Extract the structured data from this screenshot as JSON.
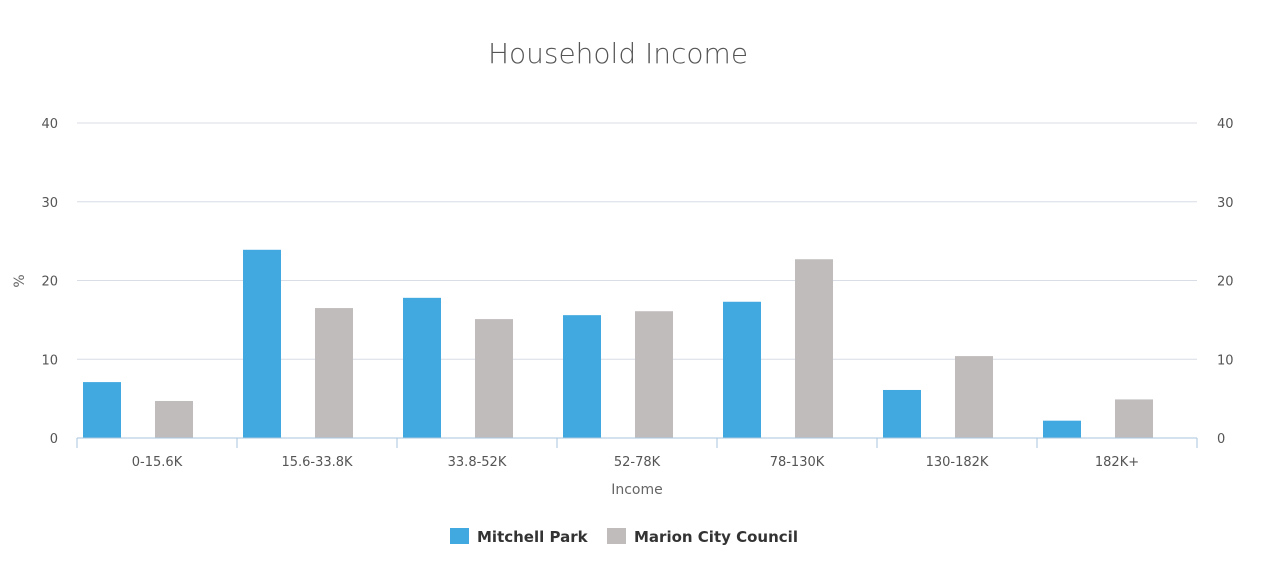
{
  "chart_data": {
    "type": "bar",
    "title": "Household Income",
    "xlabel": "Income",
    "ylabel": "%",
    "categories": [
      "0-15.6K",
      "15.6-33.8K",
      "33.8-52K",
      "52-78K",
      "78-130K",
      "130-182K",
      "182K+"
    ],
    "series": [
      {
        "name": "Mitchell Park",
        "color": "#42a9e0",
        "values": [
          7.1,
          23.9,
          17.8,
          15.6,
          17.3,
          6.1,
          2.2
        ]
      },
      {
        "name": "Marion City Council",
        "color": "#c0bcbc",
        "values": [
          4.7,
          16.5,
          15.1,
          16.1,
          22.7,
          10.4,
          4.9
        ]
      }
    ],
    "ylim": [
      0,
      40
    ],
    "yticks": [
      0,
      10,
      20,
      30,
      40
    ],
    "right_axis": true,
    "grid": true,
    "legend": "bottom-center"
  }
}
